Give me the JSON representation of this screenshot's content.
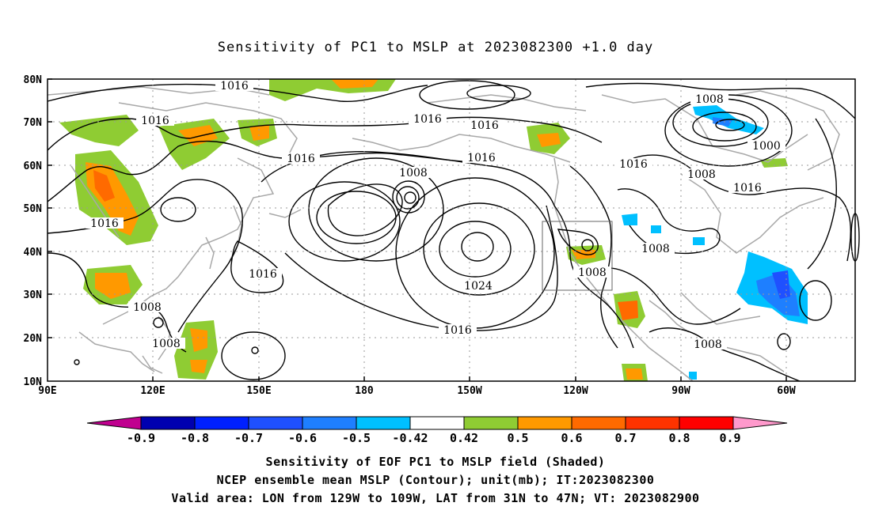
{
  "title": "Sensitivity of PC1 to MSLP at 2023082300 +1.0 day",
  "axes": {
    "lat_labels": [
      "80N",
      "70N",
      "60N",
      "50N",
      "40N",
      "30N",
      "20N",
      "10N"
    ],
    "lon_labels": [
      "90E",
      "120E",
      "150E",
      "180",
      "150W",
      "120W",
      "90W",
      "60W"
    ]
  },
  "contour_labels": {
    "c1": "1016",
    "c2": "1016",
    "c3": "1016",
    "c4": "1016",
    "c5": "1016",
    "c6": "1016",
    "c7": "1016",
    "c8": "1016",
    "c9": "1016",
    "c10": "1016",
    "c11": "1016",
    "c12": "1008",
    "c13": "1008",
    "c14": "1008",
    "c15": "1008",
    "c16": "1008",
    "c17": "1008",
    "c18": "1008",
    "c19": "1000",
    "c20": "1024",
    "c21": "1008"
  },
  "colorbar": {
    "labels": [
      "-0.9",
      "-0.8",
      "-0.7",
      "-0.6",
      "-0.5",
      "-0.42",
      "0.42",
      "0.5",
      "0.6",
      "0.7",
      "0.8",
      "0.9"
    ],
    "colors": [
      "#0000b0",
      "#0020ff",
      "#1f50ff",
      "#1e7fff",
      "#00c0ff",
      "#ffffff",
      "#8fcc33",
      "#ff9900",
      "#ff6a00",
      "#ff3300",
      "#ff0000"
    ],
    "low_tip_color": "#c0008f",
    "high_tip_color": "#ff99cc"
  },
  "captions": {
    "line1": "Sensitivity of EOF PC1 to MSLP field (Shaded)",
    "line2": "NCEP ensemble mean MSLP (Contour); unit(mb); IT:2023082300",
    "line3": "Valid area: LON from 129W to 109W, LAT from 31N to 47N; VT: 2023082900"
  }
}
